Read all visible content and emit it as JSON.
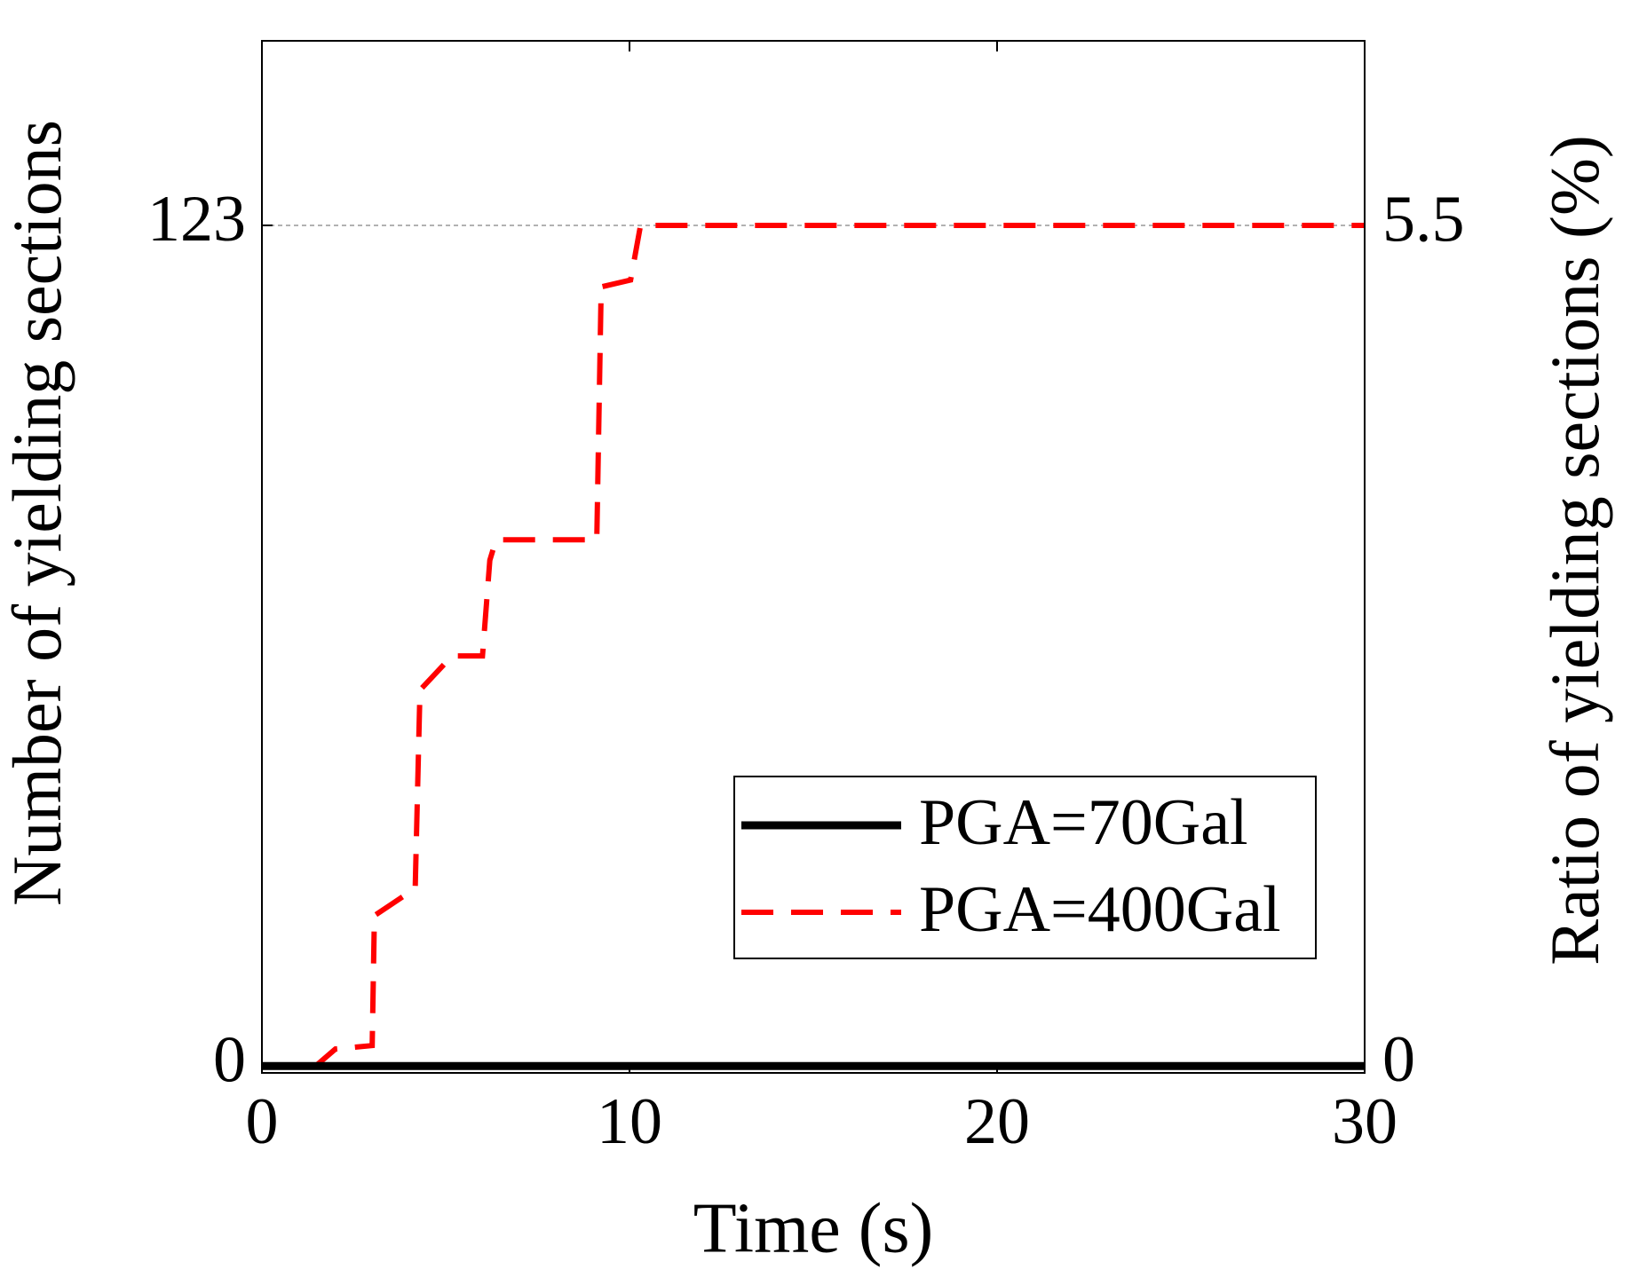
{
  "chart_data": {
    "type": "line",
    "xlabel": "Time (s)",
    "ylabel": "Number of yielding sections",
    "y2label": "Ratio of yielding sections (%)",
    "xlim": [
      0,
      30
    ],
    "xticks": [
      0,
      10,
      20,
      30
    ],
    "ylim": [
      -1,
      150
    ],
    "yticks": [
      0,
      123
    ],
    "y2lim": [
      -0.045,
      6.71
    ],
    "y2ticks": [
      0,
      5.5
    ],
    "grid_y": [
      123
    ],
    "legend": "lower right",
    "series": [
      {
        "name": "PGA=70Gal",
        "color": "#000000",
        "dash": false,
        "x": [
          0,
          30
        ],
        "values": [
          0,
          0
        ]
      },
      {
        "name": "PGA=400Gal",
        "color": "#ff0000",
        "dash": true,
        "x": [
          0,
          0.74,
          1.46,
          2.0,
          3.0,
          3.06,
          4.17,
          4.3,
          5.17,
          6.0,
          6.2,
          6.37,
          9.11,
          9.23,
          10.03,
          10.3,
          30
        ],
        "values": [
          0,
          0,
          0,
          2.5,
          3,
          22,
          26,
          55,
          60,
          60,
          74,
          77,
          77,
          114,
          115,
          123,
          123
        ]
      }
    ]
  }
}
